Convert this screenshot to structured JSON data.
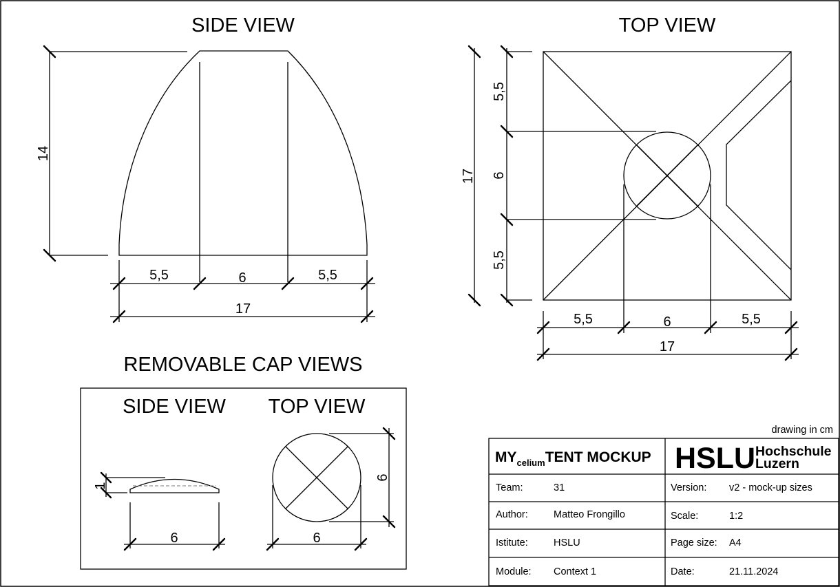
{
  "titles": {
    "side_view": "SIDE VIEW",
    "top_view": "TOP VIEW",
    "cap_views": "REMOVABLE CAP VIEWS",
    "cap_side_view": "SIDE VIEW",
    "cap_top_view": "TOP VIEW"
  },
  "side_view": {
    "height": "14",
    "segments": [
      "5,5",
      "6",
      "5,5"
    ],
    "total": "17"
  },
  "top_view": {
    "side_left": "17",
    "segments_left": [
      "5,5",
      "6",
      "5,5"
    ],
    "segments_bottom": [
      "5,5",
      "6",
      "5,5"
    ],
    "total_bottom": "17"
  },
  "cap": {
    "side_height": "1",
    "side_width": "6",
    "top_width": "6",
    "top_height": "6"
  },
  "units_note": "drawing in cm",
  "title_block": {
    "project_prefix": "MY",
    "project_sub": "celium",
    "project_name": "TENT MOCKUP",
    "logo_main": "HSLU",
    "logo_line1": "Hochschule",
    "logo_line2": "Luzern",
    "fields": [
      {
        "label": "Team:",
        "value": "31"
      },
      {
        "label": "Author:",
        "value": "Matteo Frongillo"
      },
      {
        "label": "Istitute:",
        "value": "HSLU"
      },
      {
        "label": "Module:",
        "value": "Context 1"
      }
    ],
    "right_fields": [
      {
        "label": "Version:",
        "value": "v2 - mock-up sizes"
      },
      {
        "label": "Scale:",
        "value": "1:2"
      },
      {
        "label": "Page size:",
        "value": "A4"
      },
      {
        "label": "Date:",
        "value": "21.11.2024"
      }
    ]
  }
}
